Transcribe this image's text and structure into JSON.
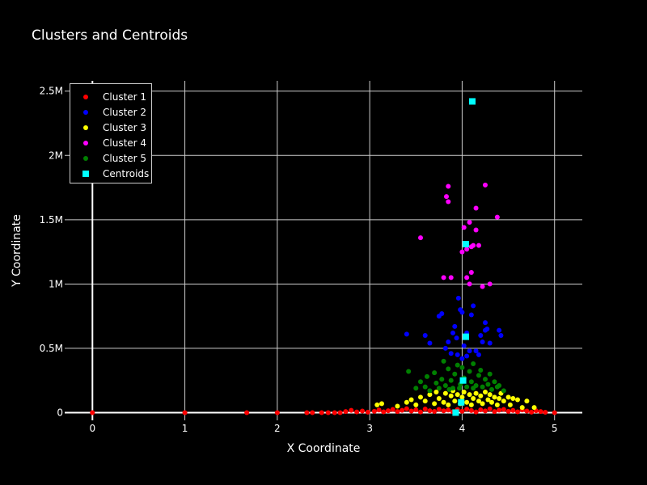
{
  "chart_data": {
    "type": "scatter",
    "title": "Clusters and Centroids",
    "xlabel": "X Coordinate",
    "ylabel": "Y Coordinate",
    "xlim": [
      -0.3,
      5.3
    ],
    "ylim": [
      -60000,
      2580000
    ],
    "x_ticks": [
      0,
      1,
      2,
      3,
      4,
      5
    ],
    "x_tick_labels": [
      "0",
      "1",
      "2",
      "3",
      "4",
      "5"
    ],
    "y_ticks": [
      0,
      500000,
      1000000,
      1500000,
      2000000,
      2500000
    ],
    "y_tick_labels": [
      "0",
      "0.5M",
      "1M",
      "1.5M",
      "2M",
      "2.5M"
    ],
    "legend_position": "top-left",
    "series": [
      {
        "name": "Cluster 1",
        "color": "#ff0000",
        "points": [
          [
            0,
            0
          ],
          [
            1,
            0
          ],
          [
            1.67,
            0
          ],
          [
            2,
            0
          ],
          [
            2.32,
            0
          ],
          [
            2.38,
            0
          ],
          [
            2.48,
            0
          ],
          [
            2.55,
            0
          ],
          [
            2.62,
            0
          ],
          [
            2.68,
            0
          ],
          [
            2.74,
            8000
          ],
          [
            2.8,
            18000
          ],
          [
            2.86,
            5000
          ],
          [
            2.92,
            12000
          ],
          [
            2.98,
            4000
          ],
          [
            3.05,
            10000
          ],
          [
            3.1,
            20000
          ],
          [
            3.15,
            6000
          ],
          [
            3.2,
            15000
          ],
          [
            3.25,
            25000
          ],
          [
            3.3,
            8000
          ],
          [
            3.35,
            18000
          ],
          [
            3.4,
            30000
          ],
          [
            3.45,
            12000
          ],
          [
            3.5,
            22000
          ],
          [
            3.55,
            5000
          ],
          [
            3.6,
            28000
          ],
          [
            3.65,
            15000
          ],
          [
            3.7,
            9000
          ],
          [
            3.75,
            26000
          ],
          [
            3.8,
            14000
          ],
          [
            3.85,
            20000
          ],
          [
            3.9,
            7000
          ],
          [
            3.95,
            24000
          ],
          [
            4.0,
            11000
          ],
          [
            4.05,
            27000
          ],
          [
            4.1,
            16000
          ],
          [
            4.15,
            5000
          ],
          [
            4.2,
            22000
          ],
          [
            4.25,
            13000
          ],
          [
            4.3,
            29000
          ],
          [
            4.35,
            8000
          ],
          [
            4.4,
            19000
          ],
          [
            4.45,
            25000
          ],
          [
            4.5,
            10000
          ],
          [
            4.55,
            17000
          ],
          [
            4.6,
            6000
          ],
          [
            4.65,
            21000
          ],
          [
            4.7,
            12000
          ],
          [
            4.75,
            4000
          ],
          [
            4.8,
            15000
          ],
          [
            4.85,
            8000
          ],
          [
            4.9,
            3000
          ],
          [
            5,
            0
          ]
        ]
      },
      {
        "name": "Cluster 2",
        "color": "#0000ff",
        "points": [
          [
            3.4,
            610000
          ],
          [
            3.6,
            600000
          ],
          [
            3.65,
            540000
          ],
          [
            3.75,
            750000
          ],
          [
            3.78,
            770000
          ],
          [
            3.82,
            500000
          ],
          [
            3.85,
            550000
          ],
          [
            3.88,
            460000
          ],
          [
            3.9,
            620000
          ],
          [
            3.92,
            670000
          ],
          [
            3.94,
            580000
          ],
          [
            3.96,
            890000
          ],
          [
            3.98,
            800000
          ],
          [
            4.0,
            780000
          ],
          [
            4.02,
            520000
          ],
          [
            4.05,
            440000
          ],
          [
            4.08,
            480000
          ],
          [
            4.1,
            760000
          ],
          [
            4.12,
            830000
          ],
          [
            4.15,
            480000
          ],
          [
            4.18,
            450000
          ],
          [
            4.2,
            600000
          ],
          [
            4.22,
            550000
          ],
          [
            4.25,
            700000
          ],
          [
            4.27,
            650000
          ],
          [
            4.3,
            540000
          ],
          [
            4.4,
            640000
          ],
          [
            4.42,
            600000
          ],
          [
            4.05,
            620000
          ],
          [
            3.95,
            450000
          ],
          [
            4.0,
            420000
          ],
          [
            4.25,
            640000
          ]
        ]
      },
      {
        "name": "Cluster 3",
        "color": "#ffff00",
        "points": [
          [
            3.08,
            60000
          ],
          [
            3.13,
            70000
          ],
          [
            3.3,
            50000
          ],
          [
            3.4,
            80000
          ],
          [
            3.45,
            100000
          ],
          [
            3.5,
            60000
          ],
          [
            3.55,
            120000
          ],
          [
            3.6,
            90000
          ],
          [
            3.65,
            140000
          ],
          [
            3.7,
            70000
          ],
          [
            3.72,
            160000
          ],
          [
            3.75,
            110000
          ],
          [
            3.8,
            80000
          ],
          [
            3.82,
            150000
          ],
          [
            3.85,
            60000
          ],
          [
            3.88,
            130000
          ],
          [
            3.9,
            170000
          ],
          [
            3.92,
            90000
          ],
          [
            3.95,
            140000
          ],
          [
            3.98,
            70000
          ],
          [
            4.0,
            120000
          ],
          [
            4.02,
            160000
          ],
          [
            4.05,
            80000
          ],
          [
            4.08,
            140000
          ],
          [
            4.1,
            60000
          ],
          [
            4.12,
            110000
          ],
          [
            4.15,
            150000
          ],
          [
            4.18,
            90000
          ],
          [
            4.2,
            130000
          ],
          [
            4.22,
            70000
          ],
          [
            4.25,
            160000
          ],
          [
            4.28,
            100000
          ],
          [
            4.3,
            140000
          ],
          [
            4.32,
            80000
          ],
          [
            4.35,
            120000
          ],
          [
            4.38,
            60000
          ],
          [
            4.4,
            110000
          ],
          [
            4.42,
            150000
          ],
          [
            4.45,
            90000
          ],
          [
            4.5,
            120000
          ],
          [
            4.52,
            60000
          ],
          [
            4.55,
            110000
          ],
          [
            4.6,
            100000
          ],
          [
            4.65,
            40000
          ],
          [
            4.7,
            90000
          ],
          [
            4.78,
            40000
          ]
        ]
      },
      {
        "name": "Cluster 4",
        "color": "#ff00ff",
        "points": [
          [
            3.55,
            1360000
          ],
          [
            3.8,
            1050000
          ],
          [
            3.83,
            1680000
          ],
          [
            3.85,
            1760000
          ],
          [
            3.85,
            1640000
          ],
          [
            3.88,
            1050000
          ],
          [
            4.0,
            1250000
          ],
          [
            4.05,
            1050000
          ],
          [
            4.08,
            1000000
          ],
          [
            4.08,
            1480000
          ],
          [
            4.1,
            1090000
          ],
          [
            4.1,
            1290000
          ],
          [
            4.12,
            1300000
          ],
          [
            4.15,
            1590000
          ],
          [
            4.15,
            1420000
          ],
          [
            4.18,
            1300000
          ],
          [
            4.22,
            980000
          ],
          [
            4.25,
            1770000
          ],
          [
            4.3,
            1000000
          ],
          [
            4.38,
            1520000
          ],
          [
            4.05,
            1270000
          ],
          [
            4.02,
            1440000
          ]
        ]
      },
      {
        "name": "Cluster 5",
        "color": "#008000",
        "points": [
          [
            3.42,
            320000
          ],
          [
            3.5,
            190000
          ],
          [
            3.55,
            240000
          ],
          [
            3.6,
            200000
          ],
          [
            3.62,
            280000
          ],
          [
            3.65,
            170000
          ],
          [
            3.7,
            310000
          ],
          [
            3.72,
            230000
          ],
          [
            3.75,
            190000
          ],
          [
            3.78,
            260000
          ],
          [
            3.8,
            400000
          ],
          [
            3.82,
            210000
          ],
          [
            3.85,
            340000
          ],
          [
            3.88,
            250000
          ],
          [
            3.9,
            190000
          ],
          [
            3.92,
            300000
          ],
          [
            3.95,
            370000
          ],
          [
            3.98,
            220000
          ],
          [
            4.0,
            350000
          ],
          [
            4.02,
            270000
          ],
          [
            4.05,
            200000
          ],
          [
            4.08,
            320000
          ],
          [
            4.1,
            240000
          ],
          [
            4.12,
            380000
          ],
          [
            4.15,
            210000
          ],
          [
            4.18,
            290000
          ],
          [
            4.2,
            330000
          ],
          [
            4.22,
            200000
          ],
          [
            4.25,
            260000
          ],
          [
            4.28,
            220000
          ],
          [
            4.3,
            300000
          ],
          [
            4.32,
            180000
          ],
          [
            4.35,
            240000
          ],
          [
            4.38,
            200000
          ],
          [
            4.4,
            210000
          ],
          [
            4.45,
            170000
          ],
          [
            4.0,
            240000
          ],
          [
            3.97,
            190000
          ],
          [
            4.12,
            190000
          ],
          [
            3.86,
            180000
          ]
        ]
      },
      {
        "name": "Centroids",
        "color": "#00ffff",
        "marker": "square",
        "points": [
          [
            4.11,
            2420000
          ],
          [
            4.04,
            1310000
          ],
          [
            4.04,
            590000
          ],
          [
            4.01,
            250000
          ],
          [
            3.99,
            80000
          ],
          [
            3.93,
            0
          ]
        ]
      }
    ]
  }
}
